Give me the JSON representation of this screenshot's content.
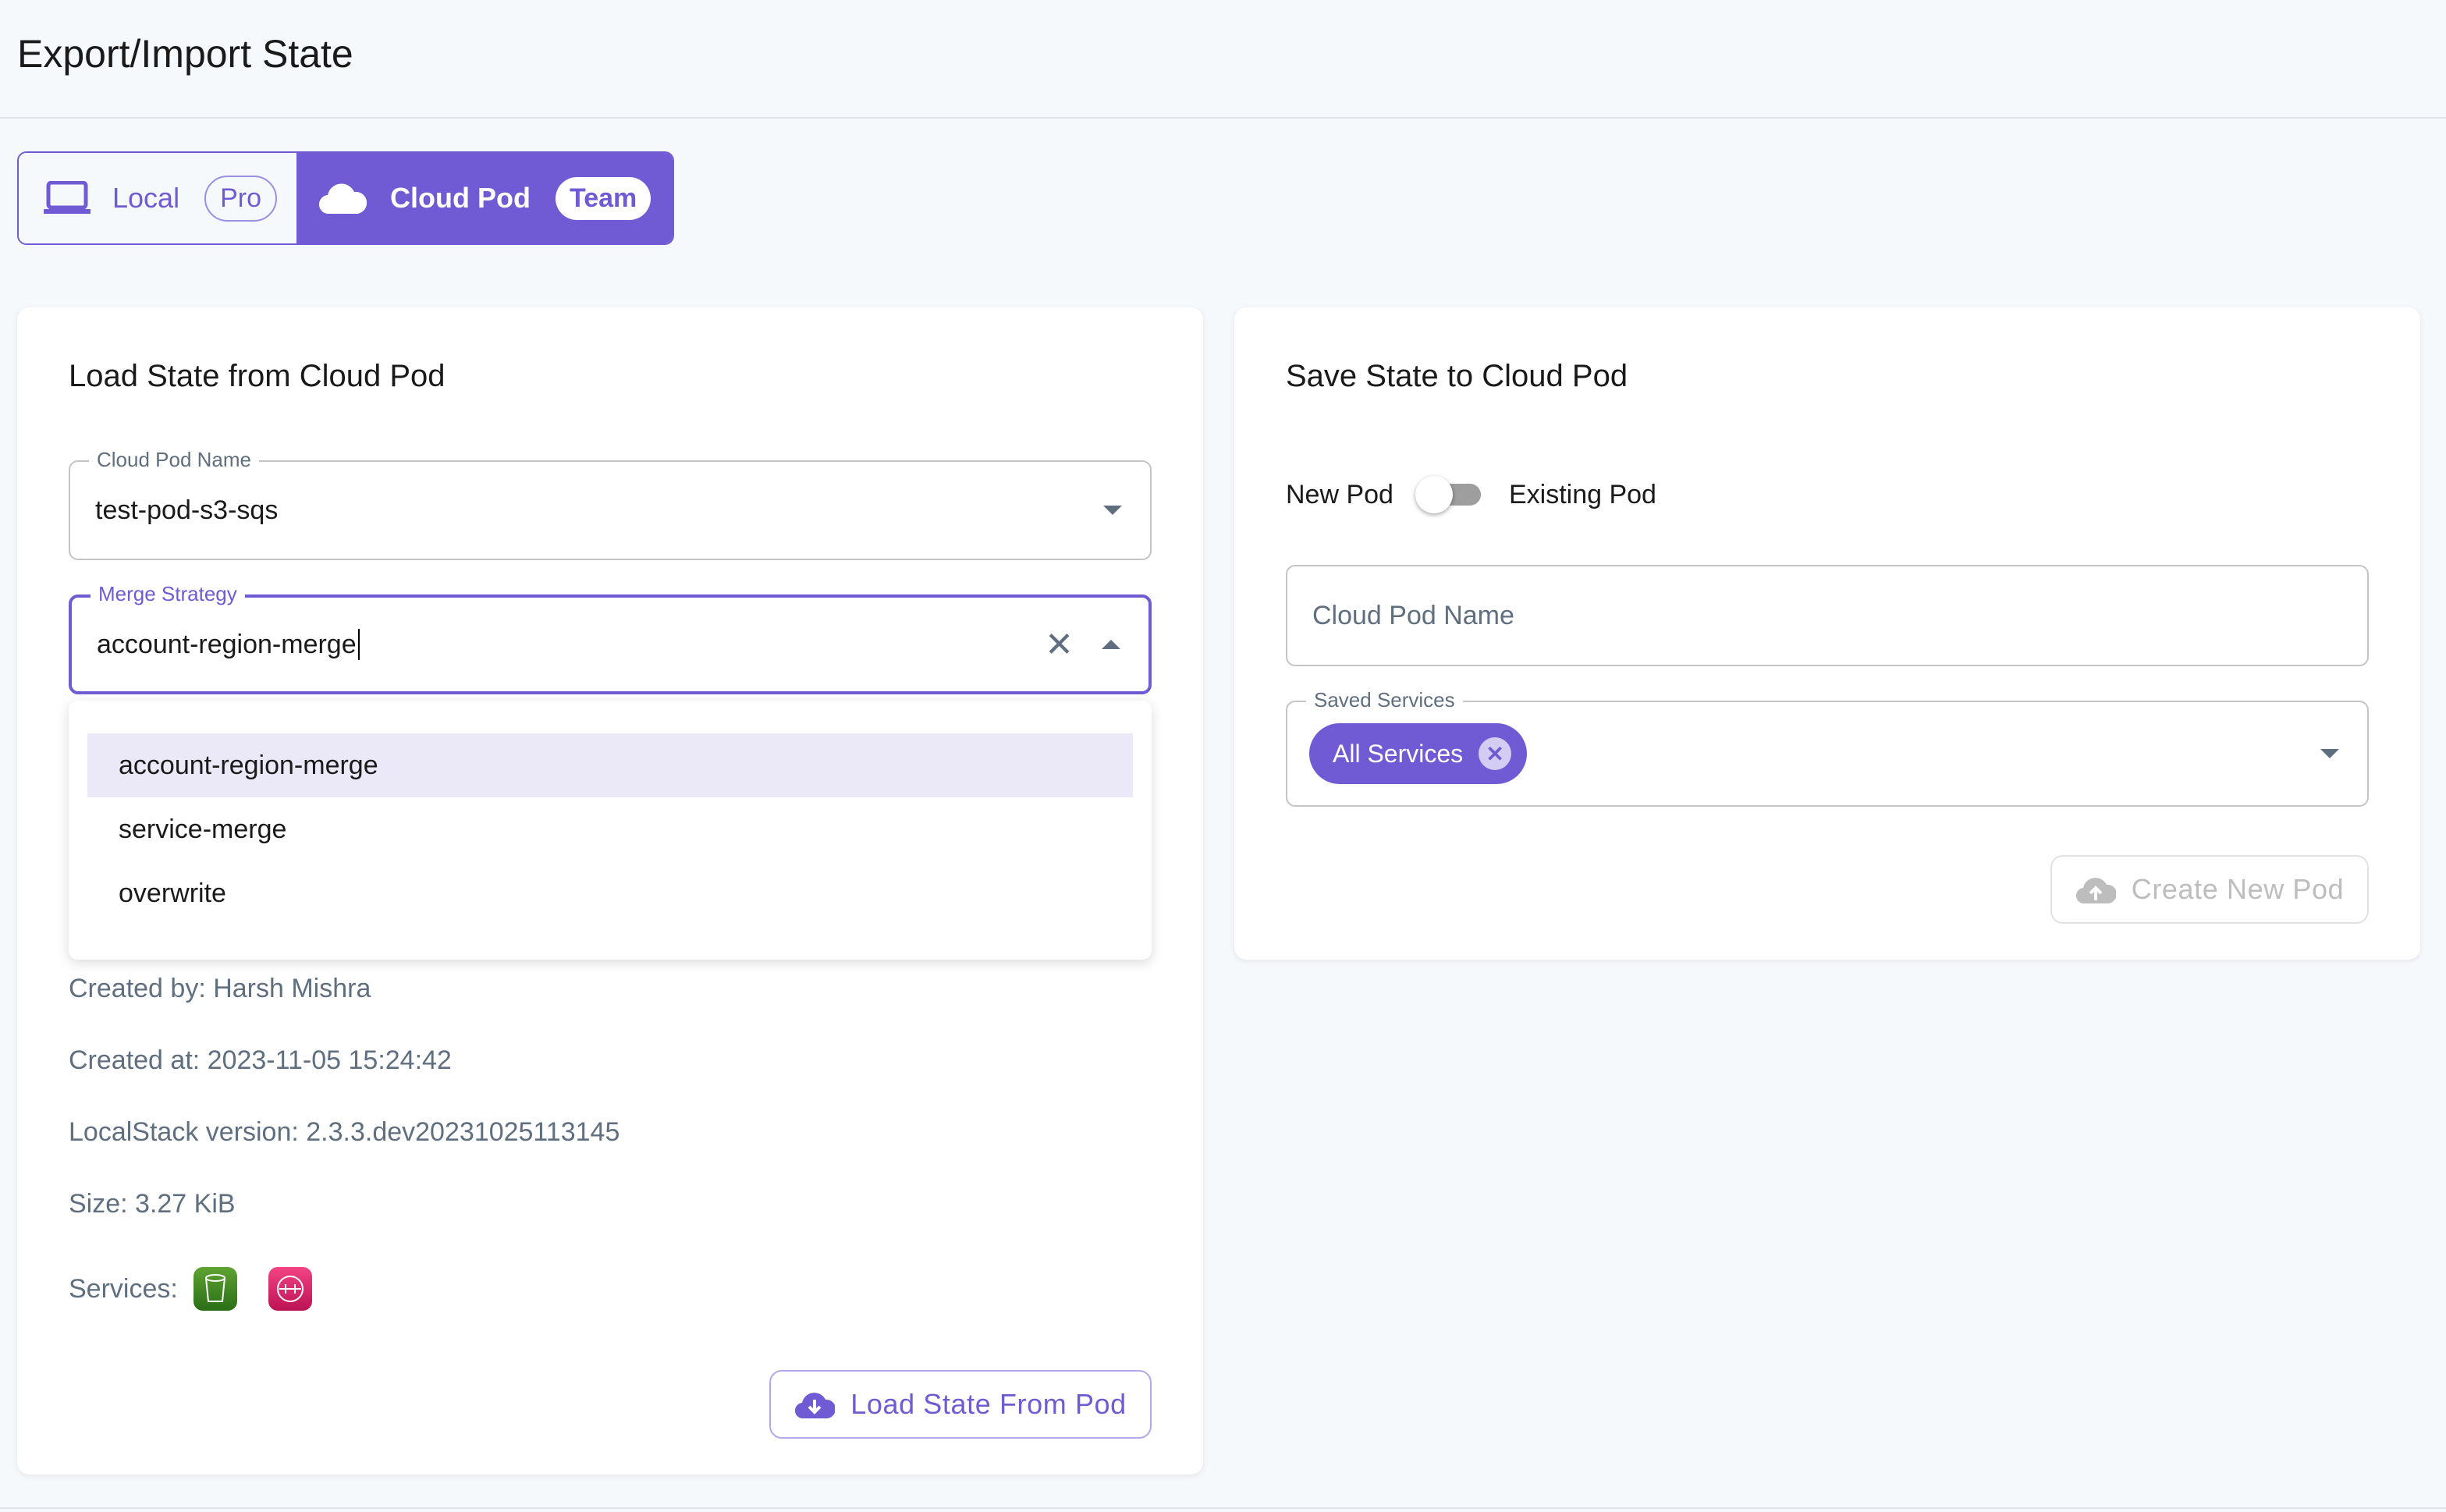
{
  "header": {
    "title": "Export/Import State"
  },
  "tabs": [
    {
      "label": "Local",
      "badge": "Pro",
      "icon": "laptop-icon",
      "active": false
    },
    {
      "label": "Cloud Pod",
      "badge": "Team",
      "icon": "cloud-icon",
      "active": true
    }
  ],
  "load": {
    "title": "Load State from Cloud Pod",
    "pod_name_label": "Cloud Pod Name",
    "pod_name_value": "test-pod-s3-sqs",
    "merge_label": "Merge Strategy",
    "merge_value": "account-region-merge",
    "merge_options": [
      "account-region-merge",
      "service-merge",
      "overwrite"
    ],
    "created_by": "Created by: Harsh Mishra",
    "created_at": "Created at: 2023-11-05 15:24:42",
    "version": "LocalStack version: 2.3.3.dev20231025113145",
    "size": "Size: 3.27 KiB",
    "services_label": "Services:",
    "services": [
      {
        "icon": "s3-bucket-icon",
        "color": "#3f8624"
      },
      {
        "icon": "sqs-queue-icon",
        "color": "#d6245f"
      }
    ],
    "button": "Load State From Pod"
  },
  "save": {
    "title": "Save State to Cloud Pod",
    "toggle_left": "New Pod",
    "toggle_right": "Existing Pod",
    "toggle_on": false,
    "pod_name_placeholder": "Cloud Pod Name",
    "services_label": "Saved Services",
    "chip": "All Services",
    "button": "Create New Pod"
  },
  "colors": {
    "accent": "#705bd4"
  }
}
